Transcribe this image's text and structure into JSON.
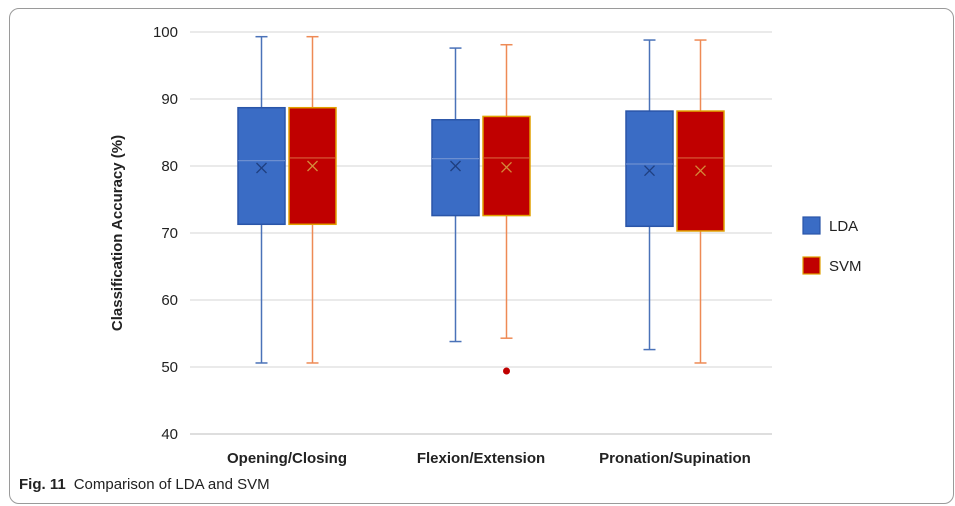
{
  "chart_data": {
    "type": "boxplot",
    "ylabel": "Classification Accuracy (%)",
    "ylim": [
      40,
      100
    ],
    "yticks": [
      40,
      50,
      60,
      70,
      80,
      90,
      100
    ],
    "grid": true,
    "legend_position": "right",
    "categories": [
      "Opening/Closing",
      "Flexion/Extension",
      "Pronation/Supination"
    ],
    "series": [
      {
        "name": "LDA",
        "color": "#3a6cc5",
        "edge_color": "#2a55a8",
        "whisker_color": "#4a72b8",
        "boxes": [
          {
            "min": 50.6,
            "q1": 71.3,
            "median": 80.8,
            "q3": 88.7,
            "max": 99.3,
            "mean": 79.7,
            "outliers": []
          },
          {
            "min": 53.8,
            "q1": 72.6,
            "median": 81.1,
            "q3": 86.9,
            "max": 97.6,
            "mean": 80.0,
            "outliers": []
          },
          {
            "min": 52.6,
            "q1": 71.0,
            "median": 80.3,
            "q3": 88.2,
            "max": 98.8,
            "mean": 79.3,
            "outliers": []
          }
        ]
      },
      {
        "name": "SVM",
        "color": "#c00000",
        "edge_color": "#e0a000",
        "whisker_color": "#ee8a55",
        "boxes": [
          {
            "min": 50.6,
            "q1": 71.3,
            "median": 81.2,
            "q3": 88.7,
            "max": 99.3,
            "mean": 80.0,
            "outliers": []
          },
          {
            "min": 54.3,
            "q1": 72.6,
            "median": 81.2,
            "q3": 87.4,
            "max": 98.1,
            "mean": 79.8,
            "outliers": [
              49.4
            ]
          },
          {
            "min": 50.6,
            "q1": 70.3,
            "median": 81.2,
            "q3": 88.2,
            "max": 98.8,
            "mean": 79.3,
            "outliers": []
          }
        ]
      }
    ]
  },
  "caption": {
    "label": "Fig. 11",
    "text": "Comparison of LDA and SVM"
  }
}
